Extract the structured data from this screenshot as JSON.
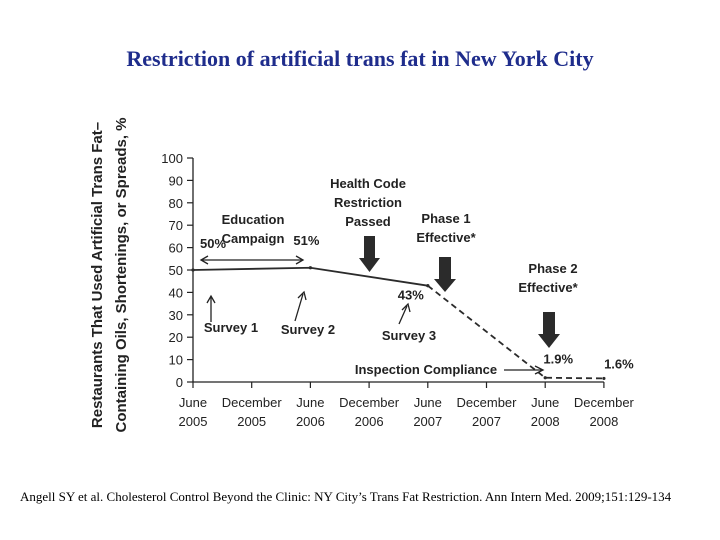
{
  "page": {
    "title": "Restriction of artificial trans fat in New York City",
    "citation": "Angell SY et al. Cholesterol Control Beyond the Clinic: NY City’s Trans Fat Restriction. Ann Intern Med. 2009;151:129-134"
  },
  "chart_data": {
    "type": "line",
    "title": "",
    "ylabel_lines": [
      "Restaurants That Used Artificial Trans Fat–",
      "Containing Oils, Shortenings, or Spreads, %"
    ],
    "ylim": [
      0,
      100
    ],
    "yticks": [
      0,
      10,
      20,
      30,
      40,
      50,
      60,
      70,
      80,
      90,
      100
    ],
    "categories": [
      {
        "top": "June",
        "bottom": "2005"
      },
      {
        "top": "December",
        "bottom": "2005"
      },
      {
        "top": "June",
        "bottom": "2006"
      },
      {
        "top": "December",
        "bottom": "2006"
      },
      {
        "top": "June",
        "bottom": "2007"
      },
      {
        "top": "December",
        "bottom": "2007"
      },
      {
        "top": "June",
        "bottom": "2008"
      },
      {
        "top": "December",
        "bottom": "2008"
      }
    ],
    "series": [
      {
        "name": "Before Phase 1",
        "style": "solid",
        "x": [
          0,
          2,
          4
        ],
        "values": [
          50,
          51,
          43
        ]
      },
      {
        "name": "After Phase 1",
        "style": "dashed",
        "x": [
          4,
          6,
          7
        ],
        "values": [
          43,
          1.9,
          1.6
        ]
      }
    ],
    "data_labels": [
      {
        "text": "50%",
        "x": 0,
        "y": 50
      },
      {
        "text": "51%",
        "x": 2,
        "y": 51
      },
      {
        "text": "43%",
        "x": 4,
        "y": 43
      },
      {
        "text": "1.9%",
        "x": 6,
        "y": 1.9
      },
      {
        "text": "1.6%",
        "x": 7,
        "y": 1.6
      }
    ],
    "annotations": {
      "education": [
        "Education",
        "Campaign"
      ],
      "health_code": [
        "Health Code",
        "Restriction",
        "Passed"
      ],
      "phase1": [
        "Phase 1",
        "Effective*"
      ],
      "phase2": [
        "Phase 2",
        "Effective*"
      ],
      "survey1": "Survey 1",
      "survey2": "Survey 2",
      "survey3": "Survey 3",
      "inspection": "Inspection Compliance"
    }
  }
}
